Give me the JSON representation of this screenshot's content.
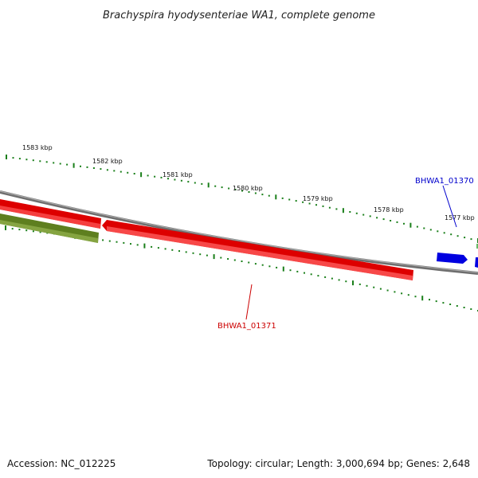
{
  "title": "Brachyspira hyodysenteriae WA1, complete genome",
  "tick_labels": [
    "1583 kbp",
    "1582 kbp",
    "1581 kbp",
    "1580 kbp",
    "1579 kbp",
    "1578 kbp",
    "1577 kbp"
  ],
  "genes": [
    {
      "label": "BHWA1_01370",
      "color": "#0000cc"
    },
    {
      "label": "BHWA1_01371",
      "color": "#cc0000"
    }
  ],
  "footer": {
    "accession": "Accession: NC_012225",
    "summary": "Topology: circular; Length: 3,000,694 bp; Genes: 2,648"
  },
  "colors": {
    "backbone": "#808080",
    "cds_forward": "#ee0000",
    "cds_reverse": "#6b8e23",
    "small_gene": "#0000ee",
    "ticks": "#1a7f1a"
  }
}
